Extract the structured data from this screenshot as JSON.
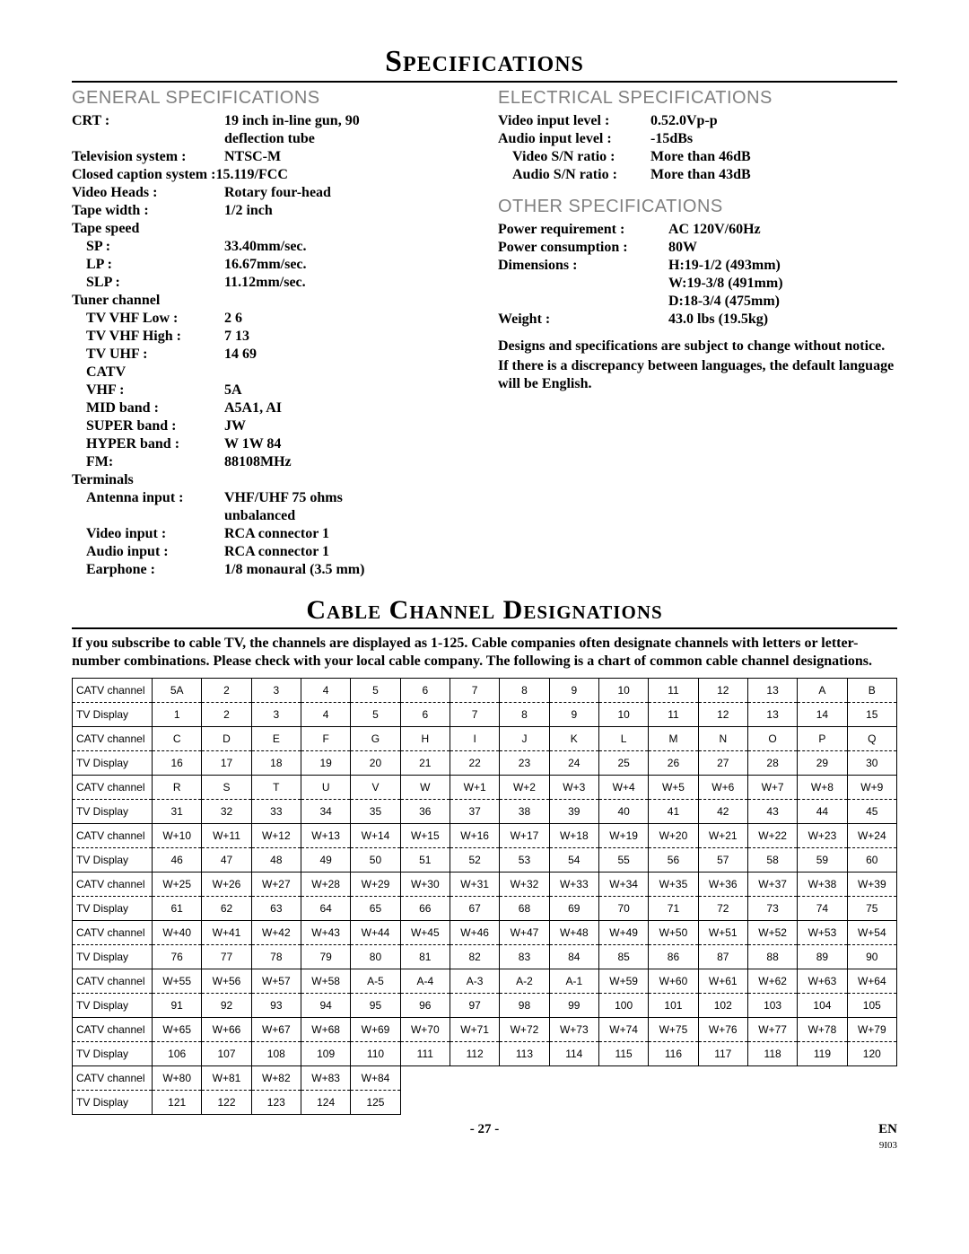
{
  "titles": {
    "main": "Specifications",
    "general": "GENERAL SPECIFICATIONS",
    "electrical": "ELECTRICAL SPECIFICATIONS",
    "other": "OTHER SPECIFICATIONS",
    "cable": "Cable Channel Designations"
  },
  "general": {
    "crt_l": "CRT :",
    "crt_v1": "19 inch in-line gun, 90",
    "crt_v2": "deflection tube",
    "tvsys_l": "Television system :",
    "tvsys_v": "NTSC-M",
    "cc_l": "Closed caption system :15.119/FCC",
    "vh_l": "Video Heads :",
    "vh_v": "Rotary four-head",
    "tw_l": "Tape width :",
    "tw_v": "1/2 inch",
    "ts_l": "Tape speed",
    "sp_l": "SP :",
    "sp_v": "33.40mm/sec.",
    "lp_l": "LP :",
    "lp_v": "16.67mm/sec.",
    "slp_l": "SLP :",
    "slp_v": "11.12mm/sec.",
    "tc_l": "Tuner channel",
    "vhfl_l": "TV VHF Low :",
    "vhfl_v": "2  6",
    "vhfh_l": "TV VHF High :",
    "vhfh_v": "7  13",
    "uhf_l": "TV UHF :",
    "uhf_v": "14  69",
    "catv_l": "CATV",
    "vhf_l": "VHF :",
    "vhf_v": "5A",
    "mid_l": "MID band :",
    "mid_v": "A5A1, AI",
    "super_l": "SUPER band :",
    "super_v": "JW",
    "hyper_l": "HYPER band :",
    "hyper_v": "W  1W  84",
    "fm_l": "FM:",
    "fm_v": "88108MHz",
    "term_l": "Terminals",
    "ant_l": "Antenna input :",
    "ant_v1": "VHF/UHF 75 ohms",
    "ant_v2": "unbalanced",
    "vin_l": "Video input :",
    "vin_v": "RCA connector  1",
    "ain_l": "Audio input :",
    "ain_v": "RCA connector  1",
    "ear_l": "Earphone :",
    "ear_v": "1/8 monaural (3.5 mm)"
  },
  "electrical": {
    "vil_l": "Video input level :",
    "vil_v": "0.52.0Vp-p",
    "ail_l": "Audio input level :",
    "ail_v": "-15dBs",
    "vsn_l": "Video S/N ratio :",
    "vsn_v": "More than 46dB",
    "asn_l": "Audio S/N ratio :",
    "asn_v": "More than 43dB"
  },
  "other": {
    "pr_l": "Power requirement :",
    "pr_v": "AC 120V/60Hz",
    "pc_l": "Power consumption :",
    "pc_v": "80W",
    "dim_l": "Dimensions :",
    "dim_v1": "H:19-1/2 (493mm)",
    "dim_v2": "W:19-3/8 (491mm)",
    "dim_v3": "D:18-3/4 (475mm)",
    "wt_l": "Weight :",
    "wt_v": "43.0 lbs (19.5kg)",
    "note1": "Designs and specifications are subject to change without notice.",
    "note2": "If there is a discrepancy between languages, the default language will be English."
  },
  "intro": "If you subscribe to cable TV, the channels are displayed as 1-125. Cable companies often designate channels with letters or letter-number combinations. Please check with your local cable company. The following is a chart of common cable channel designations.",
  "row_labels": {
    "catv": "CATV channel",
    "tv": "TV Display"
  },
  "table": {
    "pairs": [
      {
        "catv": [
          "5A",
          "2",
          "3",
          "4",
          "5",
          "6",
          "7",
          "8",
          "9",
          "10",
          "11",
          "12",
          "13",
          "A",
          "B"
        ],
        "tv": [
          "1",
          "2",
          "3",
          "4",
          "5",
          "6",
          "7",
          "8",
          "9",
          "10",
          "11",
          "12",
          "13",
          "14",
          "15"
        ]
      },
      {
        "catv": [
          "C",
          "D",
          "E",
          "F",
          "G",
          "H",
          "I",
          "J",
          "K",
          "L",
          "M",
          "N",
          "O",
          "P",
          "Q"
        ],
        "tv": [
          "16",
          "17",
          "18",
          "19",
          "20",
          "21",
          "22",
          "23",
          "24",
          "25",
          "26",
          "27",
          "28",
          "29",
          "30"
        ]
      },
      {
        "catv": [
          "R",
          "S",
          "T",
          "U",
          "V",
          "W",
          "W+1",
          "W+2",
          "W+3",
          "W+4",
          "W+5",
          "W+6",
          "W+7",
          "W+8",
          "W+9"
        ],
        "tv": [
          "31",
          "32",
          "33",
          "34",
          "35",
          "36",
          "37",
          "38",
          "39",
          "40",
          "41",
          "42",
          "43",
          "44",
          "45"
        ]
      },
      {
        "catv": [
          "W+10",
          "W+11",
          "W+12",
          "W+13",
          "W+14",
          "W+15",
          "W+16",
          "W+17",
          "W+18",
          "W+19",
          "W+20",
          "W+21",
          "W+22",
          "W+23",
          "W+24"
        ],
        "tv": [
          "46",
          "47",
          "48",
          "49",
          "50",
          "51",
          "52",
          "53",
          "54",
          "55",
          "56",
          "57",
          "58",
          "59",
          "60"
        ]
      },
      {
        "catv": [
          "W+25",
          "W+26",
          "W+27",
          "W+28",
          "W+29",
          "W+30",
          "W+31",
          "W+32",
          "W+33",
          "W+34",
          "W+35",
          "W+36",
          "W+37",
          "W+38",
          "W+39"
        ],
        "tv": [
          "61",
          "62",
          "63",
          "64",
          "65",
          "66",
          "67",
          "68",
          "69",
          "70",
          "71",
          "72",
          "73",
          "74",
          "75"
        ]
      },
      {
        "catv": [
          "W+40",
          "W+41",
          "W+42",
          "W+43",
          "W+44",
          "W+45",
          "W+46",
          "W+47",
          "W+48",
          "W+49",
          "W+50",
          "W+51",
          "W+52",
          "W+53",
          "W+54"
        ],
        "tv": [
          "76",
          "77",
          "78",
          "79",
          "80",
          "81",
          "82",
          "83",
          "84",
          "85",
          "86",
          "87",
          "88",
          "89",
          "90"
        ]
      },
      {
        "catv": [
          "W+55",
          "W+56",
          "W+57",
          "W+58",
          "A-5",
          "A-4",
          "A-3",
          "A-2",
          "A-1",
          "W+59",
          "W+60",
          "W+61",
          "W+62",
          "W+63",
          "W+64"
        ],
        "tv": [
          "91",
          "92",
          "93",
          "94",
          "95",
          "96",
          "97",
          "98",
          "99",
          "100",
          "101",
          "102",
          "103",
          "104",
          "105"
        ]
      },
      {
        "catv": [
          "W+65",
          "W+66",
          "W+67",
          "W+68",
          "W+69",
          "W+70",
          "W+71",
          "W+72",
          "W+73",
          "W+74",
          "W+75",
          "W+76",
          "W+77",
          "W+78",
          "W+79"
        ],
        "tv": [
          "106",
          "107",
          "108",
          "109",
          "110",
          "111",
          "112",
          "113",
          "114",
          "115",
          "116",
          "117",
          "118",
          "119",
          "120"
        ]
      },
      {
        "catv": [
          "W+80",
          "W+81",
          "W+82",
          "W+83",
          "W+84",
          "",
          "",
          "",
          "",
          "",
          "",
          "",
          "",
          "",
          ""
        ],
        "tv": [
          "121",
          "122",
          "123",
          "124",
          "125",
          "",
          "",
          "",
          "",
          "",
          "",
          "",
          "",
          "",
          ""
        ]
      }
    ]
  },
  "footer": {
    "page": "- 27 -",
    "lang": "EN",
    "code": "9I03"
  }
}
